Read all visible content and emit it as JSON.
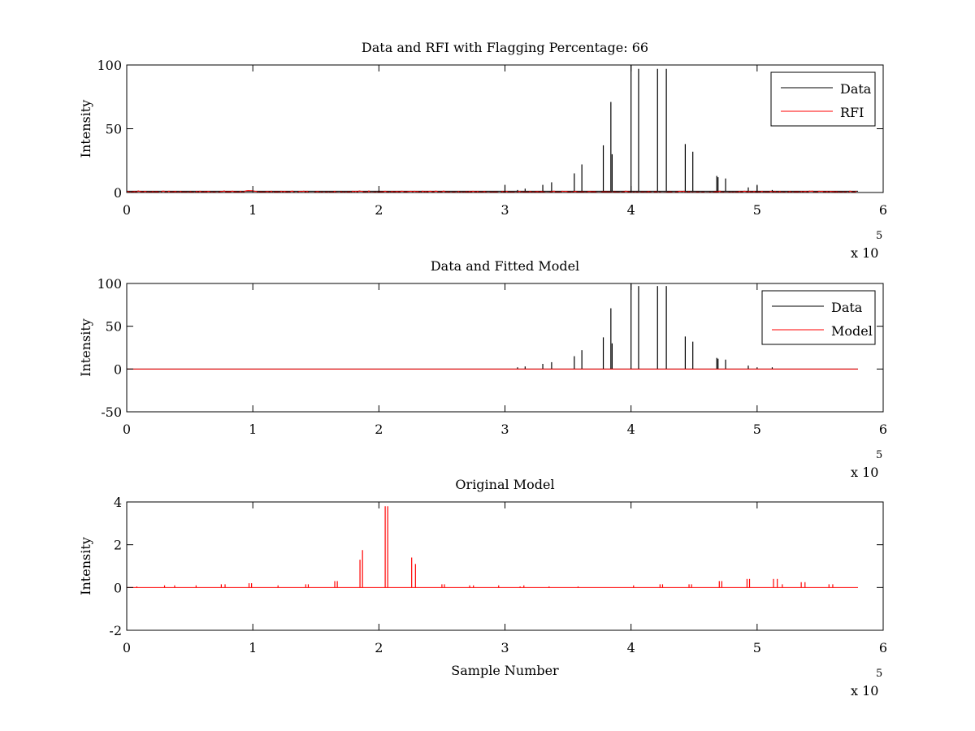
{
  "chart_data": [
    {
      "type": "line",
      "title": "Data and RFI with Flagging Percentage: 66",
      "xlabel": "",
      "ylabel": "Intensity",
      "xlim": [
        0,
        6
      ],
      "ylim": [
        0,
        100
      ],
      "x_ticks": [
        "0",
        "1",
        "2",
        "3",
        "4",
        "5",
        "6"
      ],
      "y_ticks": [
        "0",
        "50",
        "100"
      ],
      "x_multiplier": {
        "base": "x 10",
        "exp": "5"
      },
      "legend": {
        "position": "top-right",
        "entries": [
          "Data",
          "RFI"
        ]
      },
      "grid": false,
      "series": [
        {
          "name": "Data",
          "color": "#000000",
          "style": "spikes",
          "baseline": 1,
          "x": [
            3.0,
            3.1,
            3.16,
            3.3,
            3.37,
            3.55,
            3.61,
            3.78,
            3.84,
            3.85,
            4.0,
            4.06,
            4.21,
            4.28,
            4.43,
            4.49,
            4.68,
            4.69,
            4.75,
            4.93,
            5.0,
            5.12
          ],
          "y": [
            6,
            2,
            3,
            6,
            8,
            15,
            22,
            37,
            71,
            30,
            100,
            97,
            97,
            97,
            38,
            32,
            13,
            12,
            11,
            4,
            6,
            2
          ]
        },
        {
          "name": "RFI",
          "color": "#ff0000",
          "style": "noise",
          "x": [
            0.25,
            0.4,
            0.55,
            0.7,
            0.85,
            0.9,
            1.05,
            1.3,
            1.5,
            1.7,
            1.85,
            2.0,
            2.2,
            2.4,
            2.55,
            2.7,
            2.85,
            2.95,
            3.05,
            3.15,
            3.25,
            3.45,
            3.6,
            3.75,
            3.9,
            4.05,
            4.3,
            4.6,
            4.8,
            5.05,
            5.3,
            5.55
          ],
          "y": [
            1.5,
            1.2,
            1.6,
            1.0,
            1.4,
            1.3,
            1.5,
            1.2,
            1.0,
            1.3,
            1.4,
            1.6,
            1.1,
            1.3,
            1.0,
            1.2,
            1.4,
            1.5,
            1.2,
            1.0,
            1.1,
            1.3,
            1.0,
            1.2,
            0.9,
            1.1,
            0.8,
            1.0,
            0.7,
            0.9,
            0.6,
            0.5
          ]
        }
      ],
      "x_range": [
        0,
        5.8
      ]
    },
    {
      "type": "line",
      "title": "Data and Fitted Model",
      "xlabel": "",
      "ylabel": "Intensity",
      "xlim": [
        0,
        6
      ],
      "ylim": [
        -50,
        100
      ],
      "x_ticks": [
        "0",
        "1",
        "2",
        "3",
        "4",
        "5",
        "6"
      ],
      "y_ticks": [
        "-50",
        "0",
        "50",
        "100"
      ],
      "x_multiplier": {
        "base": "x 10",
        "exp": "5"
      },
      "legend": {
        "position": "top-right",
        "entries": [
          "Data",
          "Model"
        ]
      },
      "grid": false,
      "series": [
        {
          "name": "Data",
          "color": "#000000",
          "style": "spikes",
          "baseline": 0,
          "x": [
            3.1,
            3.16,
            3.3,
            3.37,
            3.55,
            3.61,
            3.78,
            3.84,
            3.85,
            4.0,
            4.06,
            4.21,
            4.28,
            4.43,
            4.49,
            4.68,
            4.69,
            4.75,
            4.93,
            5.0,
            5.12
          ],
          "y": [
            2,
            3,
            6,
            8,
            15,
            22,
            37,
            71,
            30,
            100,
            97,
            97,
            97,
            38,
            32,
            13,
            12,
            11,
            4,
            2,
            2
          ]
        },
        {
          "name": "Model",
          "color": "#ff0000",
          "style": "flat",
          "value": 0
        }
      ],
      "x_range": [
        0,
        5.8
      ]
    },
    {
      "type": "line",
      "title": "Original Model",
      "xlabel": "Sample Number",
      "ylabel": "Intensity",
      "xlim": [
        0,
        6
      ],
      "ylim": [
        -2,
        4
      ],
      "x_ticks": [
        "0",
        "1",
        "2",
        "3",
        "4",
        "5",
        "6"
      ],
      "y_ticks": [
        "-2",
        "0",
        "2",
        "4"
      ],
      "x_multiplier": {
        "base": "x 10",
        "exp": "5"
      },
      "legend": null,
      "grid": false,
      "series": [
        {
          "name": "",
          "color": "#ff0000",
          "style": "spikes",
          "baseline": 0,
          "x": [
            0.08,
            0.3,
            0.38,
            0.55,
            0.75,
            0.78,
            0.97,
            0.99,
            1.2,
            1.42,
            1.44,
            1.65,
            1.67,
            1.85,
            1.87,
            2.05,
            2.07,
            2.26,
            2.29,
            2.5,
            2.52,
            2.72,
            2.75,
            2.95,
            3.12,
            3.15,
            3.35,
            3.58,
            4.02,
            4.23,
            4.25,
            4.46,
            4.48,
            4.7,
            4.72,
            4.92,
            4.94,
            5.13,
            5.16,
            5.2,
            5.35,
            5.38,
            5.57,
            5.6
          ],
          "y": [
            0.05,
            0.1,
            0.1,
            0.1,
            0.15,
            0.15,
            0.2,
            0.2,
            0.1,
            0.15,
            0.15,
            0.3,
            0.3,
            1.3,
            1.75,
            3.8,
            3.8,
            1.4,
            1.1,
            0.15,
            0.15,
            0.1,
            0.1,
            0.1,
            0.05,
            0.1,
            0.05,
            0.05,
            0.1,
            0.15,
            0.15,
            0.15,
            0.15,
            0.3,
            0.3,
            0.4,
            0.4,
            0.4,
            0.4,
            0.15,
            0.25,
            0.25,
            0.15,
            0.15
          ]
        }
      ],
      "x_range": [
        0,
        5.8
      ]
    }
  ]
}
